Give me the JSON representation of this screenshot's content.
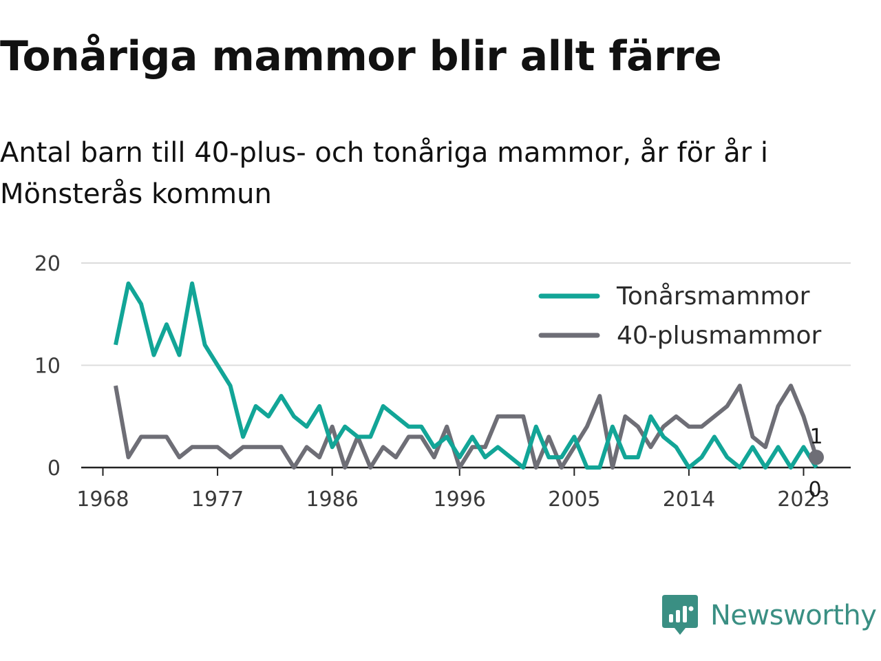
{
  "title": "Tonåriga mammor blir allt färre",
  "subtitle": "Antal barn till 40-plus- och tonåriga mammor, år för år i Mönsterås kommun",
  "brand": {
    "name": "Newsworthy",
    "color": "#3a8f83",
    "icon": "newsworthy-logo-icon"
  },
  "chart_data": {
    "type": "line",
    "x": [
      1969,
      1970,
      1971,
      1972,
      1973,
      1974,
      1975,
      1976,
      1977,
      1978,
      1979,
      1980,
      1981,
      1982,
      1983,
      1984,
      1985,
      1986,
      1987,
      1988,
      1989,
      1990,
      1991,
      1992,
      1993,
      1994,
      1995,
      1996,
      1997,
      1998,
      1999,
      2000,
      2001,
      2002,
      2003,
      2004,
      2005,
      2006,
      2007,
      2008,
      2009,
      2010,
      2011,
      2012,
      2013,
      2014,
      2015,
      2016,
      2017,
      2018,
      2019,
      2020,
      2021,
      2022,
      2023,
      2024
    ],
    "x_ticks": [
      "1968",
      "1977",
      "1986",
      "1996",
      "2005",
      "2014",
      "2023"
    ],
    "x_tick_values": [
      1968,
      1977,
      1986,
      1996,
      2005,
      2014,
      2023
    ],
    "xlim": [
      1967.2,
      2025.5
    ],
    "y_ticks": [
      "0",
      "10",
      "20"
    ],
    "y_tick_values": [
      0,
      10,
      20
    ],
    "ylim": [
      0,
      20
    ],
    "grid": true,
    "legend_position": "top-right",
    "series": [
      {
        "name": "Tonårsmammor",
        "color": "#12a597",
        "values": [
          12,
          18,
          16,
          11,
          14,
          11,
          18,
          12,
          10,
          8,
          3,
          6,
          5,
          7,
          5,
          4,
          6,
          2,
          4,
          3,
          3,
          6,
          5,
          4,
          4,
          2,
          3,
          1,
          3,
          1,
          2,
          1,
          0,
          4,
          1,
          1,
          3,
          0,
          0,
          4,
          1,
          1,
          5,
          3,
          2,
          0,
          1,
          3,
          1,
          0,
          2,
          0,
          2,
          0,
          2,
          0
        ],
        "end_label": "0"
      },
      {
        "name": "40-plusmammor",
        "color": "#6e6e76",
        "values": [
          8,
          1,
          3,
          3,
          3,
          1,
          2,
          2,
          2,
          1,
          2,
          2,
          2,
          2,
          0,
          2,
          1,
          4,
          0,
          3,
          0,
          2,
          1,
          3,
          3,
          1,
          4,
          0,
          2,
          2,
          5,
          5,
          5,
          0,
          3,
          0,
          2,
          4,
          7,
          0,
          5,
          4,
          2,
          4,
          5,
          4,
          4,
          5,
          6,
          8,
          3,
          2,
          6,
          8,
          5,
          1
        ],
        "end_label": "1"
      }
    ]
  }
}
